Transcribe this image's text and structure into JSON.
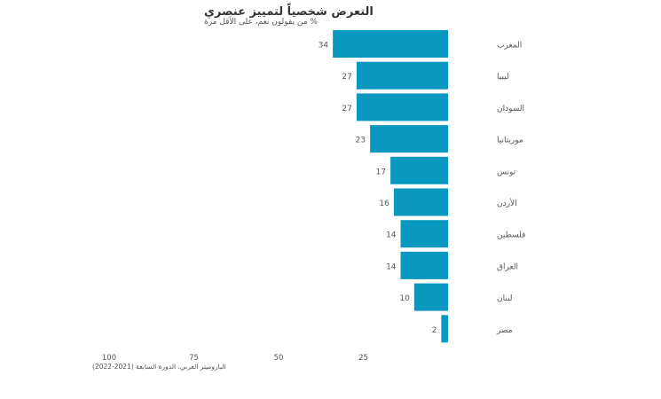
{
  "chart_data": {
    "type": "bar",
    "orientation": "horizontal",
    "title": "التعرض شخصياً لتمييز عنصري",
    "subtitle": "% من يقولون نعم، على الأقل مرة",
    "source": "الباروميتر العربي، الدورة السابعة (2021-2022)",
    "categories": [
      "المغرب",
      "ليبيا",
      "السودان",
      "موريتانيا",
      "تونس",
      "الأردن",
      "فلسطين",
      "العراق",
      "لبنان",
      "مصر"
    ],
    "values": [
      34,
      27,
      27,
      23,
      17,
      16,
      14,
      14,
      10,
      2
    ],
    "x_ticks": [
      100,
      75,
      50,
      25
    ],
    "xlim": [
      0,
      100
    ],
    "x_reversed": true,
    "bar_color": "#0a97c0",
    "grid": false
  }
}
